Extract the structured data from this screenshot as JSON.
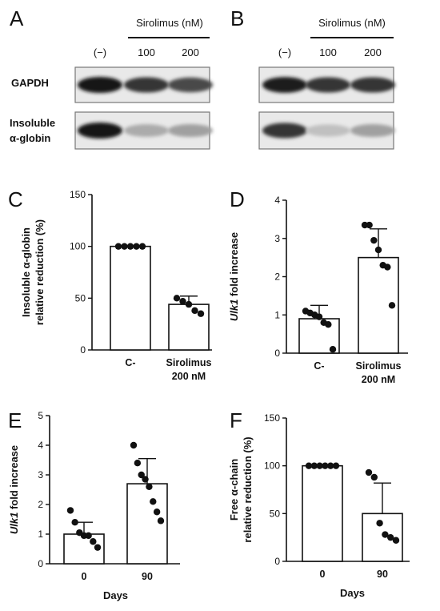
{
  "panels": {
    "A": "A",
    "B": "B",
    "C": "C",
    "D": "D",
    "E": "E",
    "F": "F"
  },
  "blots": [
    {
      "letter": "A",
      "header": "Sirolimus (nM)",
      "lanes": [
        "(−)",
        "100",
        "200"
      ],
      "rows": [
        {
          "label": "GAPDH",
          "intensity": [
            1.0,
            0.85,
            0.75
          ]
        },
        {
          "label": "Insoluble",
          "label2": "α-globin",
          "intensity": [
            1.0,
            0.3,
            0.35
          ]
        }
      ]
    },
    {
      "letter": "B",
      "header": "Sirolimus (nM)",
      "lanes": [
        "(−)",
        "100",
        "200"
      ],
      "rows": [
        {
          "intensity": [
            0.95,
            0.85,
            0.85
          ]
        },
        {
          "intensity": [
            0.85,
            0.2,
            0.35
          ]
        }
      ]
    }
  ],
  "chart_data": [
    {
      "panel": "C",
      "type": "bar",
      "categories": [
        "C-",
        "Sirolimus\n200 nM"
      ],
      "values": [
        100,
        44
      ],
      "error": [
        0,
        8
      ],
      "points": [
        [
          100,
          100,
          100,
          100,
          100
        ],
        [
          50,
          47,
          44,
          38,
          35
        ]
      ],
      "ylabel": "Insoluble α-globin\nrelative reduction (%)",
      "xlabel": "",
      "ylim": [
        0,
        150
      ],
      "yticks": [
        0,
        50,
        100,
        150
      ]
    },
    {
      "panel": "D",
      "type": "bar",
      "categories": [
        "C-",
        "Sirolimus\n200 nM"
      ],
      "values": [
        0.9,
        2.5
      ],
      "error": [
        0.35,
        0.75
      ],
      "points": [
        [
          1.1,
          1.05,
          1.0,
          0.95,
          0.8,
          0.75,
          0.1
        ],
        [
          3.35,
          3.35,
          2.95,
          2.7,
          2.3,
          2.25,
          1.25
        ]
      ],
      "ylabel": "Ulk1 fold increase",
      "ylabel_italic": "Ulk1",
      "ylabel_rest": " fold increase",
      "xlabel": "",
      "ylim": [
        0,
        4
      ],
      "yticks": [
        0,
        1,
        2,
        3,
        4
      ]
    },
    {
      "panel": "E",
      "type": "bar",
      "categories": [
        "0",
        "90"
      ],
      "values": [
        1.0,
        2.7
      ],
      "error": [
        0.4,
        0.85
      ],
      "points": [
        [
          1.8,
          1.4,
          1.05,
          0.95,
          0.95,
          0.75,
          0.55
        ],
        [
          4.0,
          3.4,
          3.0,
          2.85,
          2.6,
          2.1,
          1.75,
          1.45
        ]
      ],
      "ylabel": "Ulk1 fold increase",
      "ylabel_italic": "Ulk1",
      "ylabel_rest": " fold increase",
      "xlabel": "Days",
      "ylim": [
        0,
        5
      ],
      "yticks": [
        0,
        1,
        2,
        3,
        4,
        5
      ]
    },
    {
      "panel": "F",
      "type": "bar",
      "categories": [
        "0",
        "90"
      ],
      "values": [
        100,
        50
      ],
      "error": [
        0,
        32
      ],
      "points": [
        [
          100,
          100,
          100,
          100,
          100,
          100
        ],
        [
          93,
          88,
          40,
          28,
          25,
          22
        ]
      ],
      "ylabel": "Free α-chain\nrelative reduction (%)",
      "xlabel": "Days",
      "ylim": [
        0,
        150
      ],
      "yticks": [
        0,
        50,
        100,
        150
      ]
    }
  ]
}
